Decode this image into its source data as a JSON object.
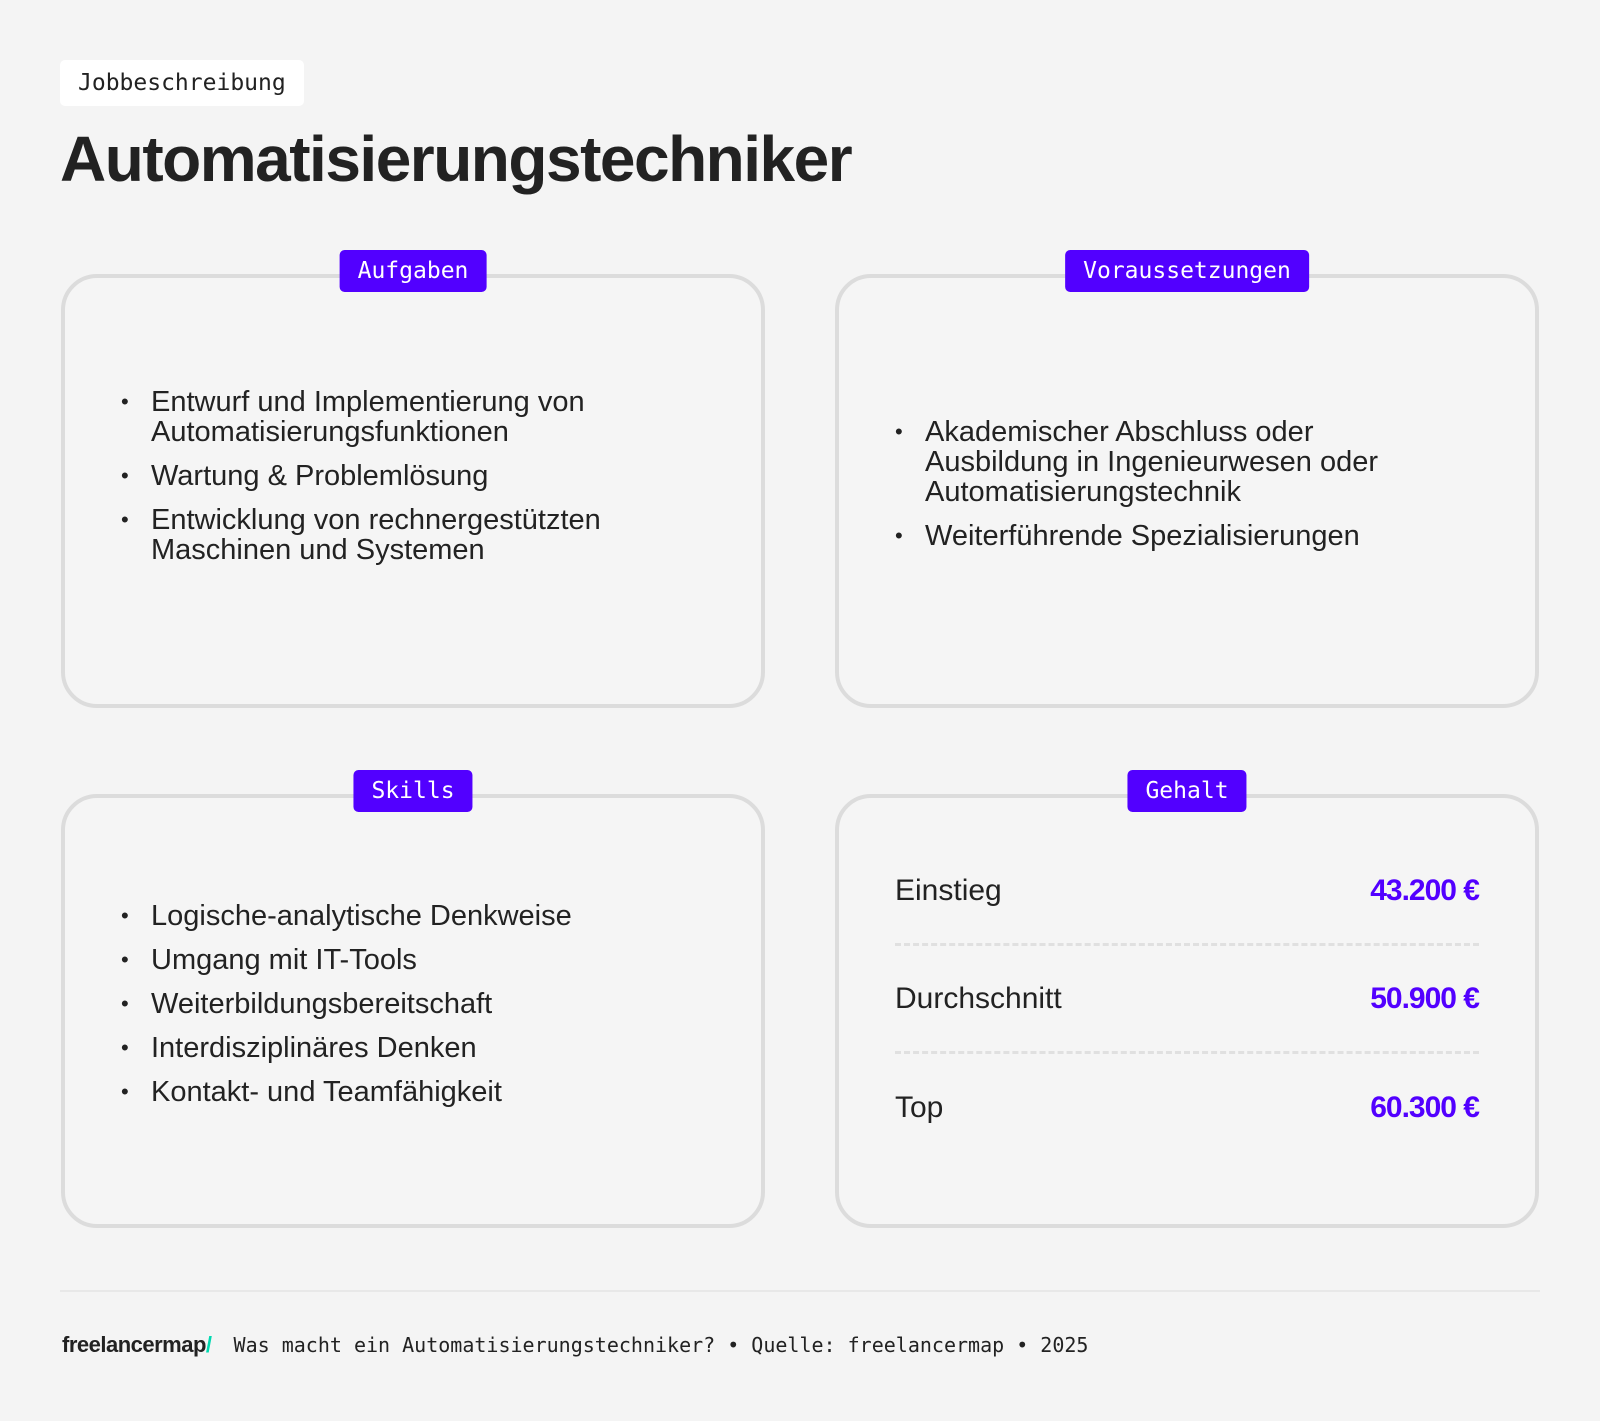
{
  "header": {
    "tag": "Jobbeschreibung",
    "title": "Automatisierungstechniker"
  },
  "cards": {
    "aufgaben": {
      "label": "Aufgaben",
      "items": [
        "Entwurf und Implementierung von Automatisierungsfunktionen",
        "Wartung & Problemlösung",
        "Entwicklung von rechnergestützten Maschinen und Systemen"
      ]
    },
    "voraussetzungen": {
      "label": "Voraussetzungen",
      "items": [
        "Akademischer Abschluss oder Ausbildung in Ingenieurwesen oder Automatisierungstechnik",
        "Weiterführende Spezialisierungen"
      ]
    },
    "skills": {
      "label": "Skills",
      "items": [
        "Logische-analytische Denkweise",
        "Umgang mit IT-Tools",
        "Weiterbildungsbereitschaft",
        "Interdisziplinäres Denken",
        "Kontakt- und Teamfähigkeit"
      ]
    },
    "gehalt": {
      "label": "Gehalt",
      "rows": [
        {
          "label": "Einstieg",
          "value": "43.200 €"
        },
        {
          "label": "Durchschnitt",
          "value": "50.900 €"
        },
        {
          "label": "Top",
          "value": "60.300 €"
        }
      ]
    }
  },
  "footer": {
    "logo": "freelancermap",
    "logo_slash": "/",
    "text": "Was macht ein Automatisierungstechniker? • Quelle: freelancermap • 2025"
  },
  "colors": {
    "accent": "#5200ff",
    "logo_accent": "#00d9b0",
    "background": "#f4f4f4"
  }
}
